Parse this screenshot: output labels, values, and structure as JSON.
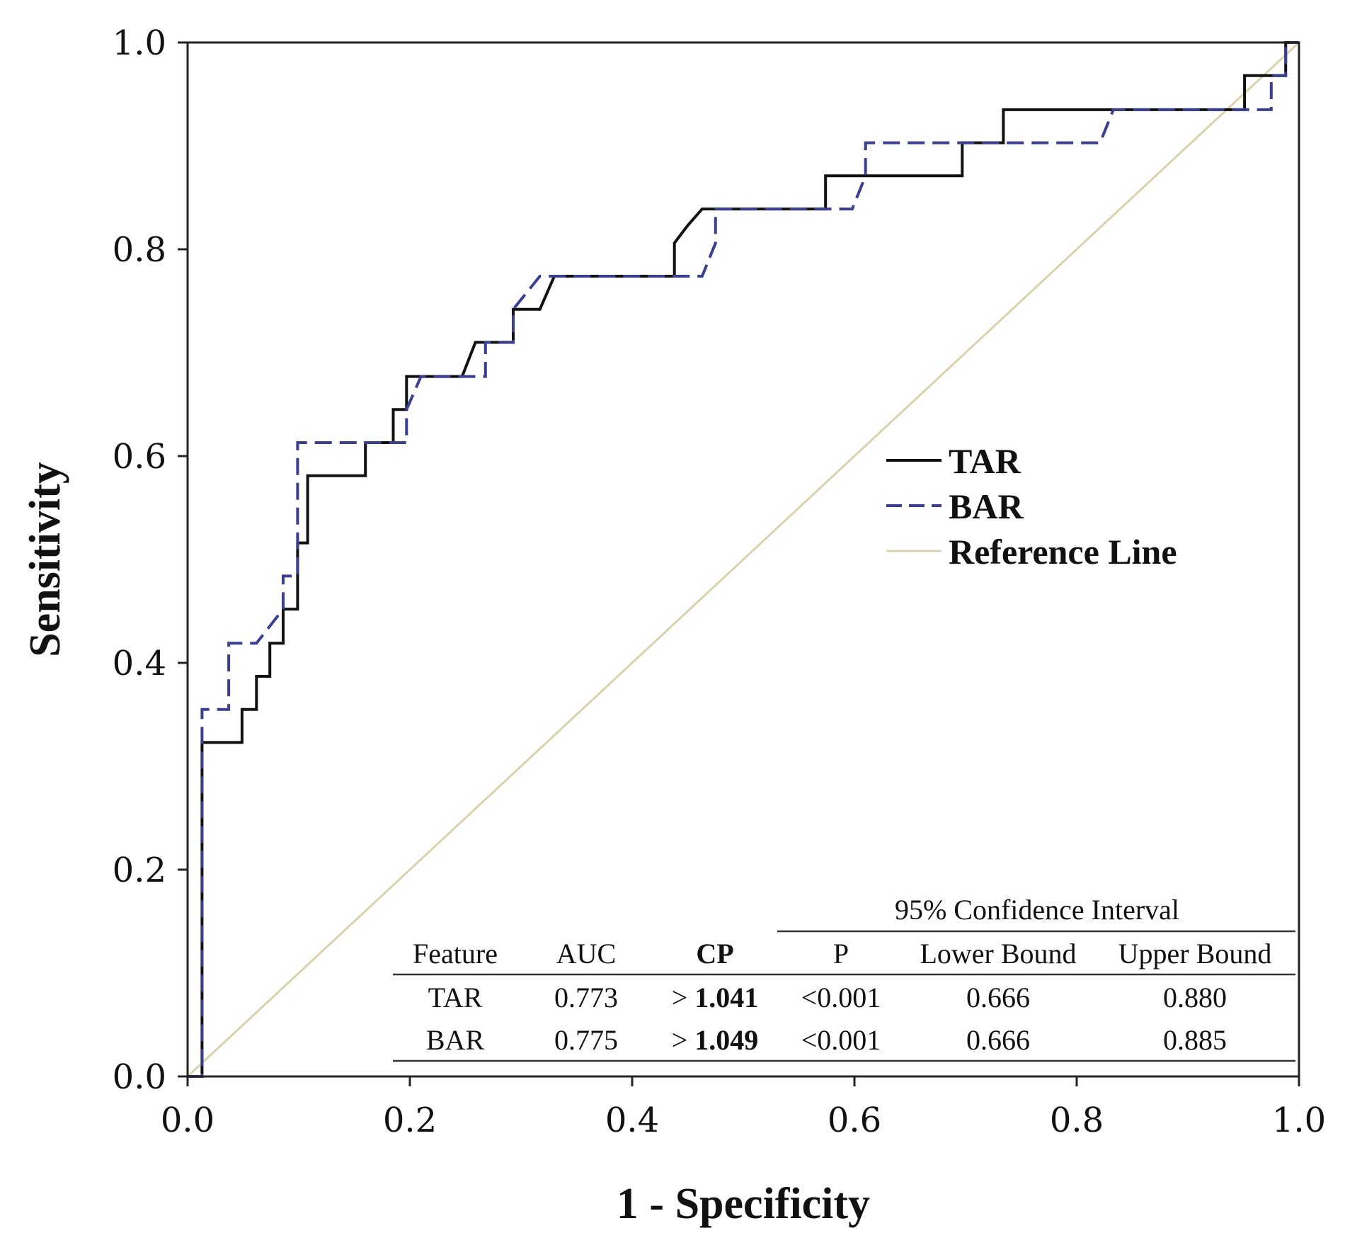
{
  "chart_data": {
    "type": "line",
    "xlabel": "1 - Specificity",
    "ylabel": "Sensitivity",
    "xlim": [
      0,
      1
    ],
    "ylim": [
      0,
      1
    ],
    "x_ticks": [
      "0.0",
      "0.2",
      "0.4",
      "0.6",
      "0.8",
      "1.0"
    ],
    "y_ticks": [
      "0.0",
      "0.2",
      "0.4",
      "0.6",
      "0.8",
      "1.0"
    ],
    "legend_position": "center-right",
    "colors": {
      "TAR": "#111111",
      "BAR": "#3b3f8f",
      "reference": "#d9d3ad"
    },
    "series": [
      {
        "name": "TAR",
        "style": "solid",
        "points": [
          [
            0,
            0
          ],
          [
            0.013,
            0
          ],
          [
            0.013,
            0.323
          ],
          [
            0.049,
            0.323
          ],
          [
            0.049,
            0.355
          ],
          [
            0.062,
            0.355
          ],
          [
            0.062,
            0.387
          ],
          [
            0.074,
            0.387
          ],
          [
            0.074,
            0.419
          ],
          [
            0.086,
            0.419
          ],
          [
            0.086,
            0.452
          ],
          [
            0.099,
            0.452
          ],
          [
            0.099,
            0.516
          ],
          [
            0.108,
            0.516
          ],
          [
            0.108,
            0.581
          ],
          [
            0.16,
            0.581
          ],
          [
            0.16,
            0.613
          ],
          [
            0.185,
            0.613
          ],
          [
            0.185,
            0.645
          ],
          [
            0.197,
            0.645
          ],
          [
            0.197,
            0.677
          ],
          [
            0.247,
            0.677
          ],
          [
            0.259,
            0.71
          ],
          [
            0.293,
            0.71
          ],
          [
            0.293,
            0.742
          ],
          [
            0.317,
            0.742
          ],
          [
            0.33,
            0.774
          ],
          [
            0.438,
            0.774
          ],
          [
            0.438,
            0.806
          ],
          [
            0.45,
            0.823
          ],
          [
            0.463,
            0.839
          ],
          [
            0.574,
            0.839
          ],
          [
            0.574,
            0.871
          ],
          [
            0.697,
            0.871
          ],
          [
            0.697,
            0.903
          ],
          [
            0.734,
            0.903
          ],
          [
            0.734,
            0.935
          ],
          [
            0.951,
            0.935
          ],
          [
            0.951,
            0.968
          ],
          [
            0.988,
            0.968
          ],
          [
            0.988,
            1.0
          ],
          [
            1.0,
            1.0
          ]
        ]
      },
      {
        "name": "BAR",
        "style": "dashed",
        "points": [
          [
            0,
            0
          ],
          [
            0.013,
            0
          ],
          [
            0.013,
            0.355
          ],
          [
            0.037,
            0.355
          ],
          [
            0.037,
            0.419
          ],
          [
            0.062,
            0.419
          ],
          [
            0.086,
            0.452
          ],
          [
            0.086,
            0.484
          ],
          [
            0.099,
            0.484
          ],
          [
            0.099,
            0.613
          ],
          [
            0.197,
            0.613
          ],
          [
            0.197,
            0.645
          ],
          [
            0.21,
            0.677
          ],
          [
            0.268,
            0.677
          ],
          [
            0.268,
            0.71
          ],
          [
            0.293,
            0.71
          ],
          [
            0.293,
            0.742
          ],
          [
            0.317,
            0.774
          ],
          [
            0.463,
            0.774
          ],
          [
            0.475,
            0.806
          ],
          [
            0.475,
            0.839
          ],
          [
            0.598,
            0.839
          ],
          [
            0.61,
            0.871
          ],
          [
            0.61,
            0.903
          ],
          [
            0.821,
            0.903
          ],
          [
            0.833,
            0.935
          ],
          [
            0.975,
            0.935
          ],
          [
            0.975,
            0.968
          ],
          [
            0.988,
            0.968
          ],
          [
            0.988,
            1.0
          ],
          [
            1.0,
            1.0
          ]
        ]
      },
      {
        "name": "Reference Line",
        "style": "reference",
        "points": [
          [
            0,
            0
          ],
          [
            1,
            1
          ]
        ]
      }
    ],
    "legend": [
      "TAR",
      "BAR",
      "Reference Line"
    ],
    "table": {
      "group_header": "95% Confidence Interval",
      "columns": [
        "Feature",
        "AUC",
        "CP",
        "P",
        "Lower Bound",
        "Upper Bound"
      ],
      "rows": [
        {
          "feature": "TAR",
          "auc": "0.773",
          "cp_prefix": ">",
          "cp_value": "1.041",
          "p": "<0.001",
          "lower": "0.666",
          "upper": "0.880"
        },
        {
          "feature": "BAR",
          "auc": "0.775",
          "cp_prefix": ">",
          "cp_value": "1.049",
          "p": "<0.001",
          "lower": "0.666",
          "upper": "0.885"
        }
      ]
    }
  }
}
